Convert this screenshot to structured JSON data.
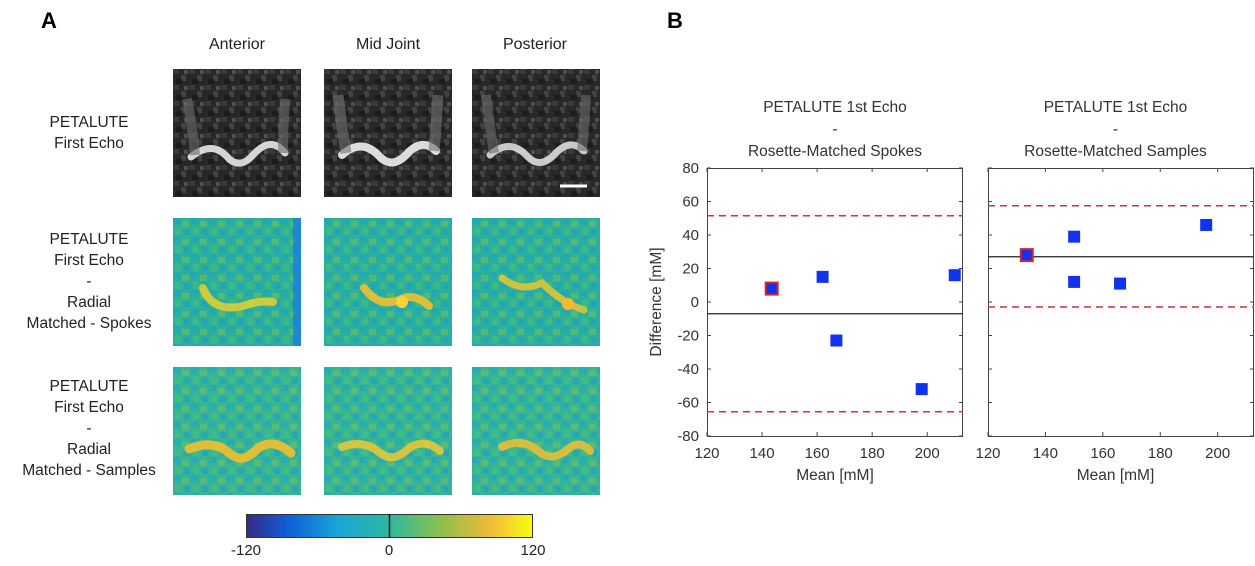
{
  "panelA": {
    "letter": "A",
    "columns": [
      "Anterior",
      "Mid Joint",
      "Posterior"
    ],
    "rows": [
      {
        "label": [
          "PETALUTE",
          "First Echo"
        ],
        "kind": "mri"
      },
      {
        "label": [
          "PETALUTE",
          "First Echo",
          "-",
          "Radial",
          "Matched - Spokes"
        ],
        "kind": "diff"
      },
      {
        "label": [
          "PETALUTE",
          "First Echo",
          "-",
          "Radial",
          "Matched - Samples"
        ],
        "kind": "diff"
      }
    ],
    "colorbar": {
      "min_label": "-120",
      "mid_label": "0",
      "max_label": "120"
    }
  },
  "panelB": {
    "letter": "B"
  },
  "chart_data": [
    {
      "type": "scatter",
      "title": [
        "PETALUTE 1st Echo",
        "-",
        "Rosette-Matched Spokes"
      ],
      "xlabel": "Mean [mM]",
      "ylabel": "Difference [mM]",
      "xlim": [
        120,
        213
      ],
      "ylim": [
        -80,
        80
      ],
      "xticks": [
        120,
        140,
        160,
        180,
        200
      ],
      "yticks": [
        -80,
        -60,
        -40,
        -20,
        0,
        20,
        40,
        60,
        80
      ],
      "points": [
        {
          "x": 143.5,
          "y": 8,
          "highlight": true
        },
        {
          "x": 162,
          "y": 15,
          "highlight": false
        },
        {
          "x": 167,
          "y": -23,
          "highlight": false
        },
        {
          "x": 198,
          "y": -52,
          "highlight": false
        },
        {
          "x": 210,
          "y": 16,
          "highlight": false
        }
      ],
      "mean_line": -7,
      "limits": [
        51.5,
        -65.5
      ],
      "colors": {
        "point": "#1133ee",
        "highlight_edge": "#dd2222",
        "limit_line": "#cc3344",
        "mean_line": "#222222"
      }
    },
    {
      "type": "scatter",
      "title": [
        "PETALUTE 1st Echo",
        "-",
        "Rosette-Matched Samples"
      ],
      "xlabel": "Mean [mM]",
      "ylabel": "",
      "xlim": [
        120,
        213
      ],
      "ylim": [
        -80,
        80
      ],
      "xticks": [
        120,
        140,
        160,
        180,
        200
      ],
      "yticks": [],
      "points": [
        {
          "x": 133.5,
          "y": 28,
          "highlight": true
        },
        {
          "x": 150,
          "y": 39,
          "highlight": false
        },
        {
          "x": 150,
          "y": 12,
          "highlight": false
        },
        {
          "x": 166,
          "y": 11,
          "highlight": false
        },
        {
          "x": 196,
          "y": 46,
          "highlight": false
        }
      ],
      "mean_line": 27,
      "limits": [
        57.5,
        -3
      ],
      "colors": {
        "point": "#1133ee",
        "highlight_edge": "#dd2222",
        "limit_line": "#cc3344",
        "mean_line": "#222222"
      }
    }
  ]
}
